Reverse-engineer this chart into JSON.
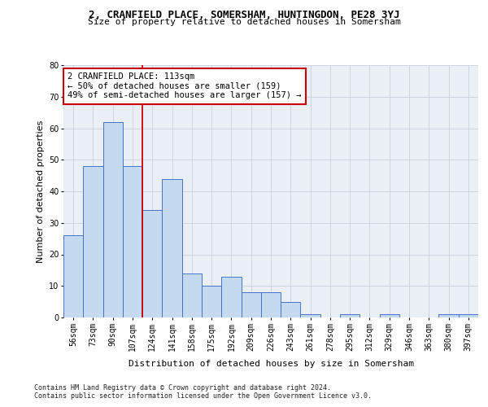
{
  "title1": "2, CRANFIELD PLACE, SOMERSHAM, HUNTINGDON, PE28 3YJ",
  "title2": "Size of property relative to detached houses in Somersham",
  "xlabel": "Distribution of detached houses by size in Somersham",
  "ylabel": "Number of detached properties",
  "categories": [
    "56sqm",
    "73sqm",
    "90sqm",
    "107sqm",
    "124sqm",
    "141sqm",
    "158sqm",
    "175sqm",
    "192sqm",
    "209sqm",
    "226sqm",
    "243sqm",
    "261sqm",
    "278sqm",
    "295sqm",
    "312sqm",
    "329sqm",
    "346sqm",
    "363sqm",
    "380sqm",
    "397sqm"
  ],
  "values": [
    26,
    48,
    62,
    48,
    34,
    44,
    14,
    10,
    13,
    8,
    8,
    5,
    1,
    0,
    1,
    0,
    1,
    0,
    0,
    1,
    1
  ],
  "bar_color": "#c5d9f1",
  "bar_edge_color": "#4472c4",
  "ylim": [
    0,
    80
  ],
  "yticks": [
    0,
    10,
    20,
    30,
    40,
    50,
    60,
    70,
    80
  ],
  "vline_pos": 3.5,
  "annotation_text": "2 CRANFIELD PLACE: 113sqm\n← 50% of detached houses are smaller (159)\n49% of semi-detached houses are larger (157) →",
  "annotation_box_color": "#ffffff",
  "annotation_box_edge": "#cc0000",
  "footer1": "Contains HM Land Registry data © Crown copyright and database right 2024.",
  "footer2": "Contains public sector information licensed under the Open Government Licence v3.0.",
  "bg_color": "#ffffff",
  "plot_bg_color": "#eaeef5",
  "grid_color": "#c8d0de",
  "vline_color": "#cc0000",
  "title1_fontsize": 9,
  "title2_fontsize": 8,
  "tick_fontsize": 7,
  "axis_label_fontsize": 8,
  "annotation_fontsize": 7.5,
  "footer_fontsize": 6
}
